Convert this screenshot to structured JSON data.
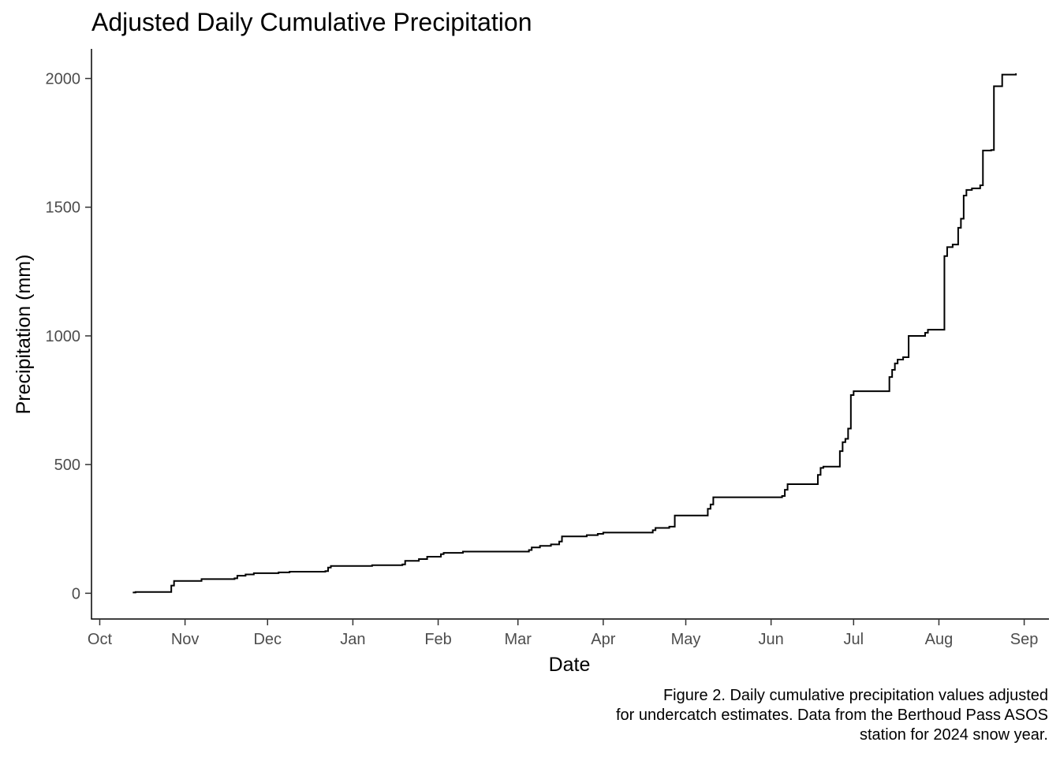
{
  "caption": {
    "line1": "Figure 2. Daily cumulative precipitation values adjusted",
    "line2": "for undercatch estimates. Data from the Berthoud Pass ASOS",
    "line3": "station for 2024 snow year."
  },
  "chart_data": {
    "type": "line",
    "step": true,
    "title": "Adjusted Daily Cumulative Precipitation",
    "xlabel": "Date",
    "ylabel": "Precipitation (mm)",
    "xlim": [
      "2023-09-28",
      "2024-09-10"
    ],
    "ylim": [
      -100,
      2115
    ],
    "x_ticks": [
      {
        "date": "2023-10-01",
        "label": "Oct"
      },
      {
        "date": "2023-11-01",
        "label": "Nov"
      },
      {
        "date": "2023-12-01",
        "label": "Dec"
      },
      {
        "date": "2024-01-01",
        "label": "Jan"
      },
      {
        "date": "2024-02-01",
        "label": "Feb"
      },
      {
        "date": "2024-03-01",
        "label": "Mar"
      },
      {
        "date": "2024-04-01",
        "label": "Apr"
      },
      {
        "date": "2024-05-01",
        "label": "May"
      },
      {
        "date": "2024-06-01",
        "label": "Jun"
      },
      {
        "date": "2024-07-01",
        "label": "Jul"
      },
      {
        "date": "2024-08-01",
        "label": "Aug"
      },
      {
        "date": "2024-09-01",
        "label": "Sep"
      }
    ],
    "y_ticks": [
      0,
      500,
      1000,
      1500,
      2000
    ],
    "grid": false,
    "color": "#000000",
    "series": [
      {
        "points": [
          [
            "2023-10-13",
            3
          ],
          [
            "2023-10-14",
            5
          ],
          [
            "2023-10-27",
            8
          ],
          [
            "2023-10-27",
            30
          ],
          [
            "2023-10-28",
            48
          ],
          [
            "2023-11-07",
            55
          ],
          [
            "2023-11-19",
            58
          ],
          [
            "2023-11-20",
            68
          ],
          [
            "2023-11-23",
            73
          ],
          [
            "2023-11-26",
            78
          ],
          [
            "2023-12-05",
            81
          ],
          [
            "2023-12-09",
            84
          ],
          [
            "2023-12-22",
            86
          ],
          [
            "2023-12-23",
            100
          ],
          [
            "2023-12-24",
            106
          ],
          [
            "2024-01-08",
            109
          ],
          [
            "2024-01-19",
            112
          ],
          [
            "2024-01-20",
            126
          ],
          [
            "2024-01-25",
            133
          ],
          [
            "2024-01-28",
            142
          ],
          [
            "2024-02-02",
            152
          ],
          [
            "2024-02-03",
            157
          ],
          [
            "2024-02-10",
            162
          ],
          [
            "2024-03-05",
            168
          ],
          [
            "2024-03-06",
            178
          ],
          [
            "2024-03-09",
            184
          ],
          [
            "2024-03-13",
            190
          ],
          [
            "2024-03-16",
            201
          ],
          [
            "2024-03-17",
            221
          ],
          [
            "2024-03-26",
            226
          ],
          [
            "2024-03-30",
            231
          ],
          [
            "2024-04-01",
            236
          ],
          [
            "2024-04-19",
            245
          ],
          [
            "2024-04-20",
            254
          ],
          [
            "2024-04-25",
            259
          ],
          [
            "2024-04-27",
            262
          ],
          [
            "2024-04-27",
            302
          ],
          [
            "2024-05-09",
            328
          ],
          [
            "2024-05-10",
            345
          ],
          [
            "2024-05-11",
            373
          ],
          [
            "2024-06-05",
            378
          ],
          [
            "2024-06-06",
            402
          ],
          [
            "2024-06-07",
            424
          ],
          [
            "2024-06-18",
            460
          ],
          [
            "2024-06-19",
            487
          ],
          [
            "2024-06-20",
            492
          ],
          [
            "2024-06-26",
            500
          ],
          [
            "2024-06-26",
            552
          ],
          [
            "2024-06-27",
            587
          ],
          [
            "2024-06-28",
            600
          ],
          [
            "2024-06-29",
            640
          ],
          [
            "2024-06-30",
            655
          ],
          [
            "2024-06-30",
            770
          ],
          [
            "2024-07-01",
            785
          ],
          [
            "2024-07-14",
            840
          ],
          [
            "2024-07-15",
            868
          ],
          [
            "2024-07-16",
            893
          ],
          [
            "2024-07-17",
            908
          ],
          [
            "2024-07-19",
            917
          ],
          [
            "2024-07-21",
            950
          ],
          [
            "2024-07-21",
            1000
          ],
          [
            "2024-07-27",
            1012
          ],
          [
            "2024-07-28",
            1024
          ],
          [
            "2024-08-03",
            1024
          ],
          [
            "2024-08-03",
            1310
          ],
          [
            "2024-08-04",
            1345
          ],
          [
            "2024-08-06",
            1355
          ],
          [
            "2024-08-08",
            1360
          ],
          [
            "2024-08-08",
            1420
          ],
          [
            "2024-08-09",
            1455
          ],
          [
            "2024-08-10",
            1545
          ],
          [
            "2024-08-11",
            1567
          ],
          [
            "2024-08-13",
            1573
          ],
          [
            "2024-08-16",
            1585
          ],
          [
            "2024-08-17",
            1720
          ],
          [
            "2024-08-20",
            1722
          ],
          [
            "2024-08-21",
            1970
          ],
          [
            "2024-08-24",
            2015
          ],
          [
            "2024-08-29",
            2020
          ]
        ]
      }
    ]
  }
}
